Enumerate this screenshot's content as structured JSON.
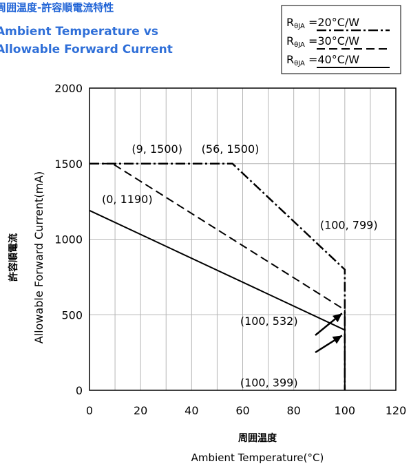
{
  "header": {
    "title_jp": "周囲温度-許容順電流特性",
    "title_en_line1": "Ambient Temperature vs",
    "title_en_line2": "Allowable Forward Current"
  },
  "chart_data": {
    "type": "line",
    "xlabel_jp": "周囲温度",
    "xlabel": "Ambient Temperature(°C)",
    "ylabel_jp": "許容順電流",
    "ylabel": "Allowable Forward Current(mA)",
    "xlim": [
      0,
      120
    ],
    "ylim": [
      0,
      2000
    ],
    "xticks": [
      0,
      20,
      40,
      60,
      80,
      100,
      120
    ],
    "yticks": [
      0,
      500,
      1000,
      1500,
      2000
    ],
    "xtick_labels": [
      "0",
      "20",
      "40",
      "60",
      "80",
      "100",
      "120"
    ],
    "ytick_labels": [
      "0",
      "500",
      "1000",
      "1500",
      "2000"
    ],
    "grid": true,
    "legend_position": "top-right",
    "series": [
      {
        "name": "RθJA =20°C/W",
        "style": "dash-dot",
        "x": [
          0,
          56,
          100,
          100
        ],
        "y": [
          1500,
          1500,
          799,
          0
        ]
      },
      {
        "name": "RθJA =30°C/W",
        "style": "dashed",
        "x": [
          0,
          9,
          100,
          100
        ],
        "y": [
          1500,
          1500,
          532,
          0
        ]
      },
      {
        "name": "RθJA =40°C/W",
        "style": "solid",
        "x": [
          0,
          100,
          100
        ],
        "y": [
          1190,
          399,
          0
        ]
      }
    ],
    "legend_items": [
      {
        "prefix": "R",
        "sub": "θJA",
        "suffix": " =20°C/W"
      },
      {
        "prefix": "R",
        "sub": "θJA",
        "suffix": " =30°C/W"
      },
      {
        "prefix": "R",
        "sub": "θJA",
        "suffix": " =40°C/W"
      }
    ],
    "annotations": [
      {
        "text": "(9, 1500)",
        "x": 9,
        "y": 1500
      },
      {
        "text": "(56, 1500)",
        "x": 56,
        "y": 1500
      },
      {
        "text": "(0, 1190)",
        "x": 0,
        "y": 1190
      },
      {
        "text": "(100, 799)",
        "x": 100,
        "y": 799
      },
      {
        "text": "(100, 532)",
        "x": 100,
        "y": 532
      },
      {
        "text": "(100, 399)",
        "x": 100,
        "y": 399
      }
    ]
  }
}
